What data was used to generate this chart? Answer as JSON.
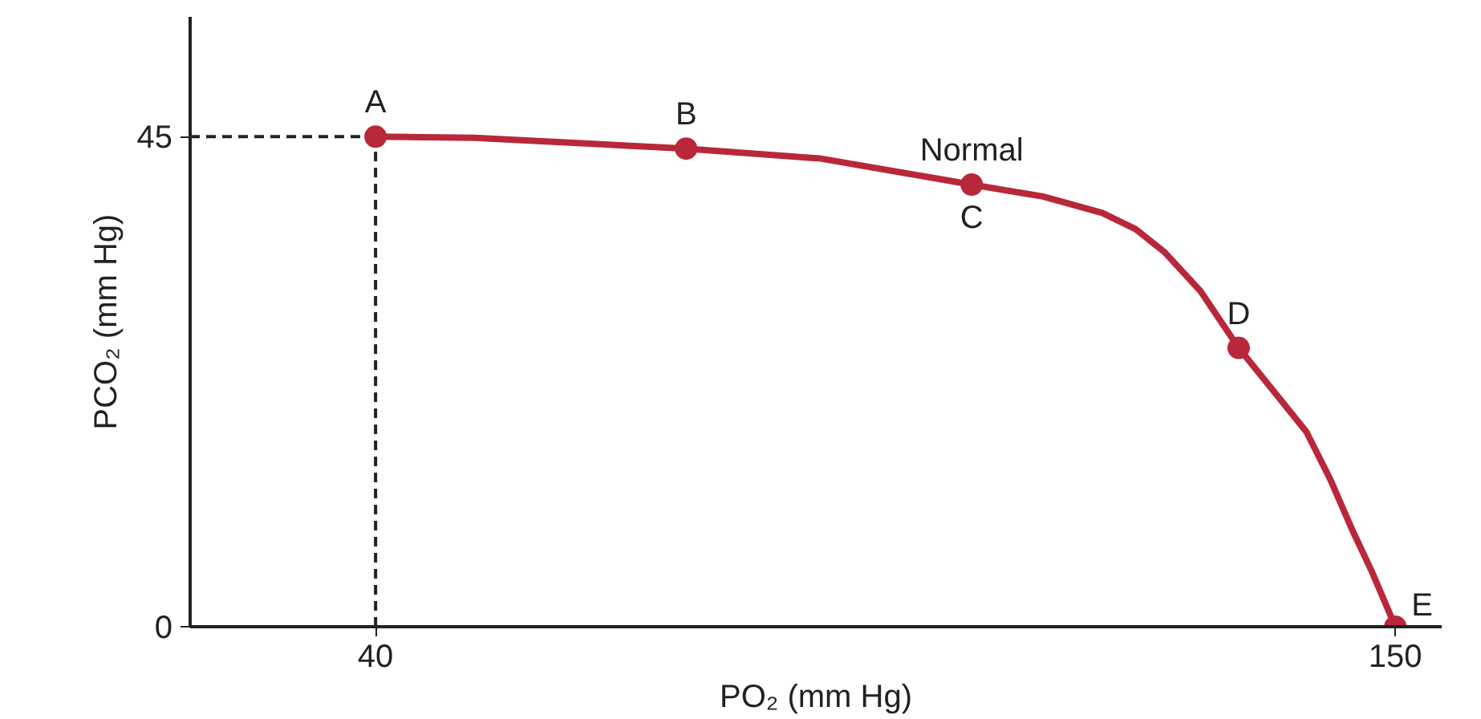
{
  "chart_data": {
    "type": "line",
    "xlabel": "PO₂ (mm Hg)",
    "ylabel": "PCO₂ (mm Hg)",
    "xlim": [
      20,
      155
    ],
    "ylim": [
      0,
      56
    ],
    "xticks": [
      40,
      150
    ],
    "yticks": [
      0,
      45
    ],
    "grid": false,
    "series": [
      {
        "color": "#b8283a",
        "x": [
          40,
          50.7,
          73.5,
          87.9,
          104.3,
          112,
          118.4,
          122,
          125.1,
          129,
          133.1,
          137,
          140.4,
          143,
          145.4,
          147.5,
          150
        ],
        "values": [
          45,
          44.9,
          43.9,
          43.0,
          40.6,
          39.5,
          38.0,
          36.5,
          34.4,
          30.8,
          25.6,
          21.5,
          17.9,
          13.5,
          8.8,
          5,
          0
        ],
        "marker": "none"
      },
      {
        "type": "scatter",
        "color": "#b8283a",
        "x": [
          40,
          73.5,
          104.3,
          133.1,
          150
        ],
        "values": [
          45,
          43.9,
          40.6,
          25.6,
          0
        ],
        "marker": "circle"
      }
    ],
    "ref_lines": [
      {
        "axis": "y",
        "value": 45,
        "line_style": "dashed",
        "color": "#222222"
      },
      {
        "axis": "x",
        "value": 40,
        "line_style": "dashed",
        "color": "#222222"
      }
    ],
    "annotations": [
      {
        "text": "A",
        "x": 40,
        "y": 45
      },
      {
        "text": "B",
        "x": 73.5,
        "y": 43.9
      },
      {
        "text": "Normal",
        "x": 104.3,
        "y": 40.6
      },
      {
        "text": "C",
        "x": 104.3,
        "y": 40.6
      },
      {
        "text": "D",
        "x": 133.1,
        "y": 25.6
      },
      {
        "text": "E",
        "x": 150,
        "y": 0
      }
    ]
  }
}
